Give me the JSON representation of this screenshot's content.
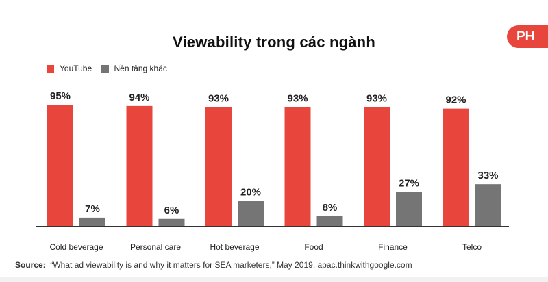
{
  "badge": "PH",
  "source": {
    "label": "Source:",
    "text": "“What ad viewability is and why it matters for SEA marketers,” May 2019. apac.thinkwithgoogle.com"
  },
  "colors": {
    "youtube": "#e8453c",
    "other": "#757575",
    "axis": "#333333",
    "badge": "#e8453c"
  },
  "chart_data": {
    "type": "bar",
    "title": "Viewability trong các ngành",
    "categories": [
      "Cold beverage",
      "Personal care",
      "Hot beverage",
      "Food",
      "Finance",
      "Telco"
    ],
    "series": [
      {
        "name": "YouTube",
        "values": [
          95,
          94,
          93,
          93,
          93,
          92
        ],
        "labels": [
          "95%",
          "94%",
          "93%",
          "93%",
          "93%",
          "92%"
        ]
      },
      {
        "name": "Nền tảng khác",
        "values": [
          7,
          6,
          20,
          8,
          27,
          33
        ],
        "labels": [
          "7%",
          "6%",
          "20%",
          "8%",
          "27%",
          "33%"
        ]
      }
    ],
    "ylim": [
      0,
      100
    ],
    "grid": false,
    "legend": "top-left"
  }
}
